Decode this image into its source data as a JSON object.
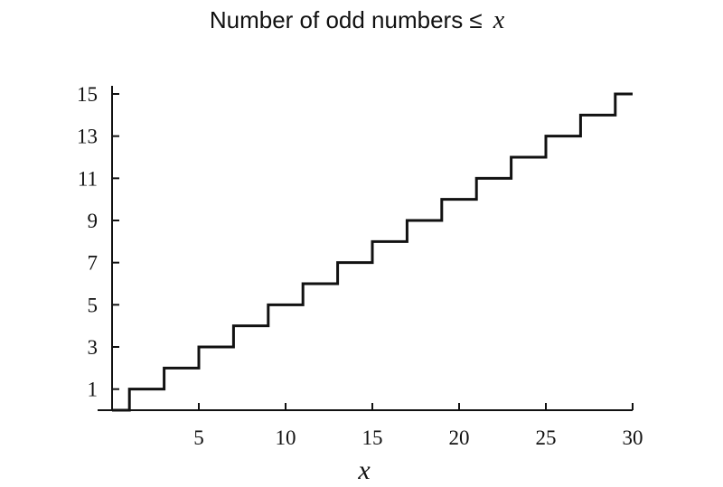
{
  "chart_data": {
    "type": "line",
    "title": "Number of odd numbers ≤",
    "title_variable": "x",
    "xlabel": "x",
    "ylabel": "",
    "xlim": [
      0,
      30
    ],
    "ylim": [
      0,
      15
    ],
    "x_ticks": [
      5,
      10,
      15,
      20,
      25,
      30
    ],
    "y_ticks": [
      1,
      3,
      5,
      7,
      9,
      11,
      13,
      15
    ],
    "grid": false,
    "series": [
      {
        "style": "step",
        "color": "#111111",
        "x": [
          0,
          1,
          3,
          5,
          7,
          9,
          11,
          13,
          15,
          17,
          19,
          21,
          23,
          25,
          27,
          29,
          30
        ],
        "y": [
          0,
          1,
          2,
          3,
          4,
          5,
          6,
          7,
          8,
          9,
          10,
          11,
          12,
          13,
          14,
          15,
          15
        ]
      }
    ]
  }
}
